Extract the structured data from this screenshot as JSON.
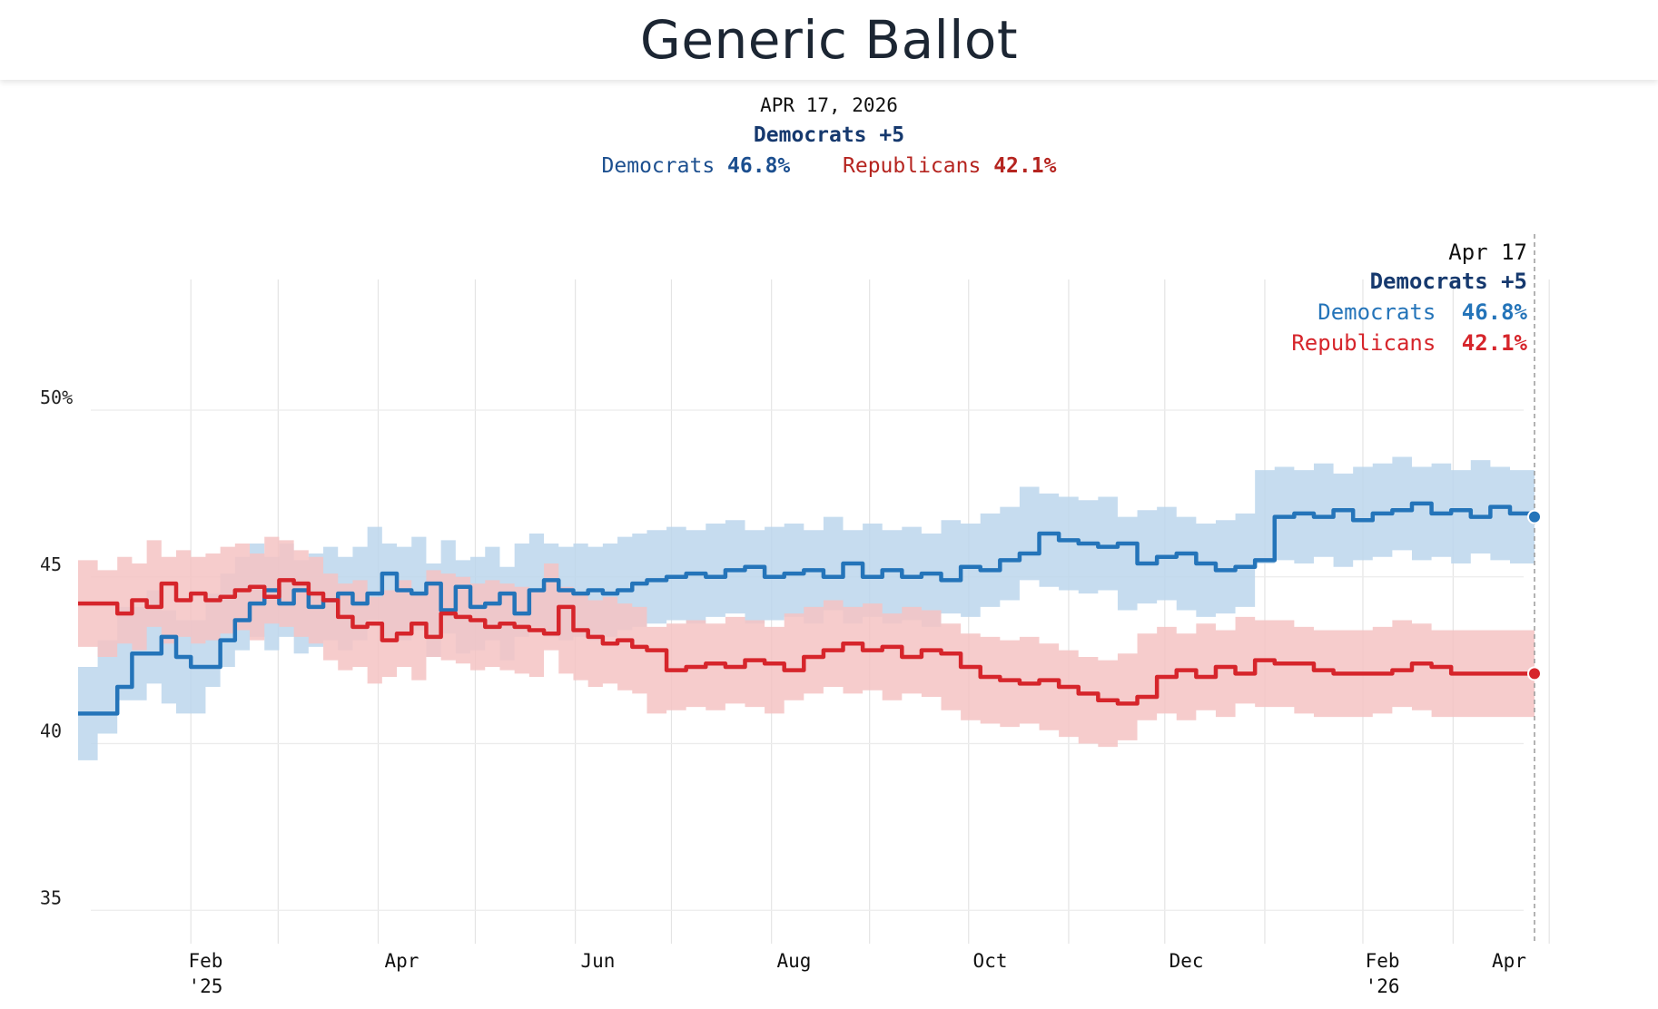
{
  "title": "Generic Ballot",
  "summary": {
    "date": "APR 17, 2026",
    "margin": "Democrats +5",
    "dem_label": "Democrats",
    "dem_value": "46.8%",
    "rep_label": "Republicans",
    "rep_value": "42.1%"
  },
  "tooltip": {
    "date": "Apr 17",
    "margin": "Democrats +5",
    "dem_label": "Democrats",
    "dem_value": "46.8%",
    "rep_label": "Republicans",
    "rep_value": "42.1%"
  },
  "colors": {
    "dem": "#2474b9",
    "dem_band": "#bcd6ec",
    "rep": "#d6252b",
    "rep_band": "#f5c3c3"
  },
  "chart_data": {
    "type": "line",
    "title": "Generic Ballot",
    "ylabel": "",
    "xlabel": "",
    "ylim": [
      34,
      54
    ],
    "yticks": [
      {
        "value": 50,
        "label": "50%"
      },
      {
        "value": 45,
        "label": "45"
      },
      {
        "value": 40,
        "label": "40"
      },
      {
        "value": 35,
        "label": "35"
      }
    ],
    "x_range_months": [
      -0.3,
      14.55
    ],
    "xticks": [
      {
        "month": 1,
        "label": "Feb",
        "sub": "'25"
      },
      {
        "month": 3,
        "label": "Apr",
        "sub": ""
      },
      {
        "month": 5,
        "label": "Jun",
        "sub": ""
      },
      {
        "month": 7,
        "label": "Aug",
        "sub": ""
      },
      {
        "month": 9,
        "label": "Oct",
        "sub": ""
      },
      {
        "month": 11,
        "label": "Dec",
        "sub": ""
      },
      {
        "month": 13,
        "label": "Feb",
        "sub": "'26"
      },
      {
        "month": 15,
        "label": "Apr",
        "sub": ""
      }
    ],
    "gridlines_months": [
      0.85,
      1.74,
      2.76,
      3.75,
      4.77,
      5.75,
      6.77,
      7.77,
      8.78,
      9.8,
      10.78,
      11.8,
      12.8,
      13.72,
      14.7
    ],
    "series": [
      {
        "name": "Democrats",
        "color": "#2474b9",
        "band_width": 1.4,
        "x": [
          -0.3,
          -0.1,
          0.1,
          0.25,
          0.4,
          0.55,
          0.7,
          0.85,
          1.0,
          1.15,
          1.3,
          1.45,
          1.6,
          1.75,
          1.9,
          2.05,
          2.2,
          2.35,
          2.5,
          2.65,
          2.8,
          2.95,
          3.1,
          3.25,
          3.4,
          3.55,
          3.7,
          3.85,
          4.0,
          4.15,
          4.3,
          4.45,
          4.6,
          4.75,
          4.9,
          5.05,
          5.2,
          5.35,
          5.5,
          5.7,
          5.9,
          6.1,
          6.3,
          6.5,
          6.7,
          6.9,
          7.1,
          7.3,
          7.5,
          7.7,
          7.9,
          8.1,
          8.3,
          8.5,
          8.7,
          8.9,
          9.1,
          9.3,
          9.5,
          9.7,
          9.9,
          10.1,
          10.3,
          10.5,
          10.7,
          10.9,
          11.1,
          11.3,
          11.5,
          11.7,
          11.9,
          12.1,
          12.3,
          12.5,
          12.7,
          12.9,
          13.1,
          13.3,
          13.5,
          13.7,
          13.9,
          14.1,
          14.3,
          14.55
        ],
        "values": [
          40.9,
          40.9,
          41.7,
          42.7,
          42.7,
          43.2,
          42.6,
          42.3,
          42.3,
          43.1,
          43.7,
          44.2,
          44.6,
          44.2,
          44.6,
          44.1,
          44.3,
          44.5,
          44.2,
          44.5,
          45.1,
          44.6,
          44.5,
          44.8,
          44.0,
          44.7,
          44.1,
          44.2,
          44.5,
          43.9,
          44.6,
          44.9,
          44.6,
          44.5,
          44.6,
          44.5,
          44.6,
          44.8,
          44.9,
          45.0,
          45.1,
          45.0,
          45.2,
          45.3,
          45.0,
          45.1,
          45.2,
          45.0,
          45.4,
          45.0,
          45.2,
          45.0,
          45.1,
          44.9,
          45.3,
          45.2,
          45.5,
          45.7,
          46.3,
          46.1,
          46.0,
          45.9,
          46.0,
          45.4,
          45.6,
          45.7,
          45.4,
          45.2,
          45.3,
          45.5,
          46.8,
          46.9,
          46.8,
          47.0,
          46.7,
          46.9,
          47.0,
          47.2,
          46.9,
          47.0,
          46.8,
          47.1,
          46.9,
          46.8
        ]
      },
      {
        "name": "Republicans",
        "color": "#d6252b",
        "band_width": 1.3,
        "x": [
          -0.3,
          -0.1,
          0.1,
          0.25,
          0.4,
          0.55,
          0.7,
          0.85,
          1.0,
          1.15,
          1.3,
          1.45,
          1.6,
          1.75,
          1.9,
          2.05,
          2.2,
          2.35,
          2.5,
          2.65,
          2.8,
          2.95,
          3.1,
          3.25,
          3.4,
          3.55,
          3.7,
          3.85,
          4.0,
          4.15,
          4.3,
          4.45,
          4.6,
          4.75,
          4.9,
          5.05,
          5.2,
          5.35,
          5.5,
          5.7,
          5.9,
          6.1,
          6.3,
          6.5,
          6.7,
          6.9,
          7.1,
          7.3,
          7.5,
          7.7,
          7.9,
          8.1,
          8.3,
          8.5,
          8.7,
          8.9,
          9.1,
          9.3,
          9.5,
          9.7,
          9.9,
          10.1,
          10.3,
          10.5,
          10.7,
          10.9,
          11.1,
          11.3,
          11.5,
          11.7,
          11.9,
          12.1,
          12.3,
          12.5,
          12.7,
          12.9,
          13.1,
          13.3,
          13.5,
          13.7,
          13.9,
          14.1,
          14.3,
          14.55
        ],
        "values": [
          44.2,
          44.2,
          43.9,
          44.3,
          44.1,
          44.8,
          44.3,
          44.5,
          44.3,
          44.4,
          44.6,
          44.7,
          44.4,
          44.9,
          44.8,
          44.5,
          44.3,
          43.8,
          43.5,
          43.6,
          43.1,
          43.3,
          43.6,
          43.2,
          43.9,
          43.8,
          43.7,
          43.5,
          43.6,
          43.5,
          43.4,
          43.3,
          44.1,
          43.4,
          43.2,
          43.0,
          43.1,
          42.9,
          42.8,
          42.2,
          42.3,
          42.4,
          42.3,
          42.5,
          42.4,
          42.2,
          42.6,
          42.8,
          43.0,
          42.8,
          42.9,
          42.6,
          42.8,
          42.7,
          42.3,
          42.0,
          41.9,
          41.8,
          41.9,
          41.7,
          41.5,
          41.3,
          41.2,
          41.4,
          42.0,
          42.2,
          42.0,
          42.3,
          42.1,
          42.5,
          42.4,
          42.4,
          42.2,
          42.1,
          42.1,
          42.1,
          42.2,
          42.4,
          42.3,
          42.1,
          42.1,
          42.1,
          42.1,
          42.1
        ]
      }
    ]
  }
}
